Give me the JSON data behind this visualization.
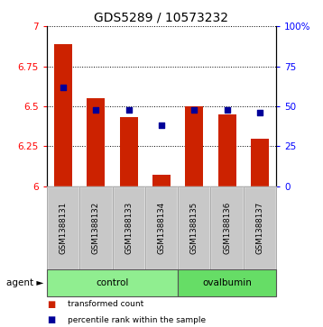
{
  "title": "GDS5289 / 10573232",
  "samples": [
    "GSM1388131",
    "GSM1388132",
    "GSM1388133",
    "GSM1388134",
    "GSM1388135",
    "GSM1388136",
    "GSM1388137"
  ],
  "red_values": [
    6.89,
    6.55,
    6.43,
    6.07,
    6.5,
    6.45,
    6.3
  ],
  "blue_values": [
    62,
    48,
    48,
    38,
    48,
    48,
    46
  ],
  "left_ylim": [
    6.0,
    7.0
  ],
  "right_ylim": [
    0,
    100
  ],
  "left_yticks": [
    6,
    6.25,
    6.5,
    6.75,
    7
  ],
  "right_yticks": [
    0,
    25,
    50,
    75,
    100
  ],
  "left_yticklabels": [
    "6",
    "6.25",
    "6.5",
    "6.75",
    "7"
  ],
  "right_yticklabels": [
    "0",
    "25",
    "50",
    "75",
    "100%"
  ],
  "groups": [
    {
      "label": "control",
      "start": 0,
      "end": 3,
      "color": "#90EE90"
    },
    {
      "label": "ovalbumin",
      "start": 4,
      "end": 6,
      "color": "#66DD66"
    }
  ],
  "group_row_label": "agent",
  "bar_color": "#CC2200",
  "dot_color": "#000099",
  "bar_width": 0.55,
  "bar_bottom": 6.0,
  "legend_items": [
    {
      "color": "#CC2200",
      "label": "transformed count"
    },
    {
      "color": "#000099",
      "label": "percentile rank within the sample"
    }
  ],
  "sample_area_color": "#C8C8C8",
  "title_fontsize": 10,
  "tick_fontsize": 7.5,
  "sample_fontsize": 6.2
}
